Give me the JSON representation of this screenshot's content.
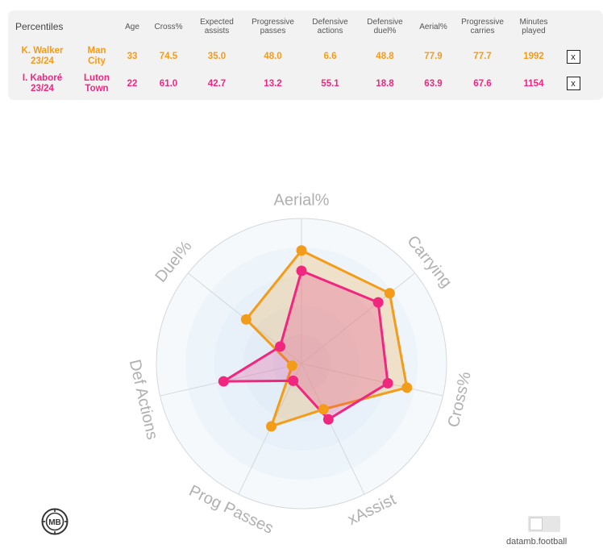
{
  "table": {
    "title": "Percentiles",
    "headers": [
      "Age",
      "Cross%",
      "Expected\nassists",
      "Progressive\npasses",
      "Defensive\nactions",
      "Defensive\nduel%",
      "Aerial%",
      "Progressive\ncarries",
      "Minutes\nplayed"
    ],
    "close_label": "x",
    "rows": [
      {
        "player": "K. Walker\n23/24",
        "team": "Man\nCity",
        "values": [
          "33",
          "74.5",
          "35.0",
          "48.0",
          "6.6",
          "48.8",
          "77.9",
          "77.7",
          "1992"
        ],
        "color": "#f39c1a"
      },
      {
        "player": "I. Kaboré\n23/24",
        "team": "Luton\nTown",
        "values": [
          "22",
          "61.0",
          "42.7",
          "13.2",
          "55.1",
          "18.8",
          "63.9",
          "67.6",
          "1154"
        ],
        "color": "#f0267f"
      }
    ]
  },
  "chart_data": {
    "type": "radar",
    "axes": [
      "Aerial%",
      "Carrying",
      "Cross%",
      "xAssist",
      "Prog Passes",
      "Def Actions",
      "Duel%"
    ],
    "range": [
      0,
      100
    ],
    "series": [
      {
        "name": "K. Walker 23/24",
        "color": "#f39c1a",
        "values": [
          77.9,
          77.7,
          74.5,
          35.0,
          48.0,
          6.6,
          48.8
        ]
      },
      {
        "name": "I. Kaboré 23/24",
        "color": "#f0267f",
        "values": [
          63.9,
          67.6,
          61.0,
          42.7,
          13.2,
          55.1,
          18.8
        ]
      }
    ]
  },
  "footer": {
    "logo_text": "MB",
    "brand": "datamb.football"
  }
}
